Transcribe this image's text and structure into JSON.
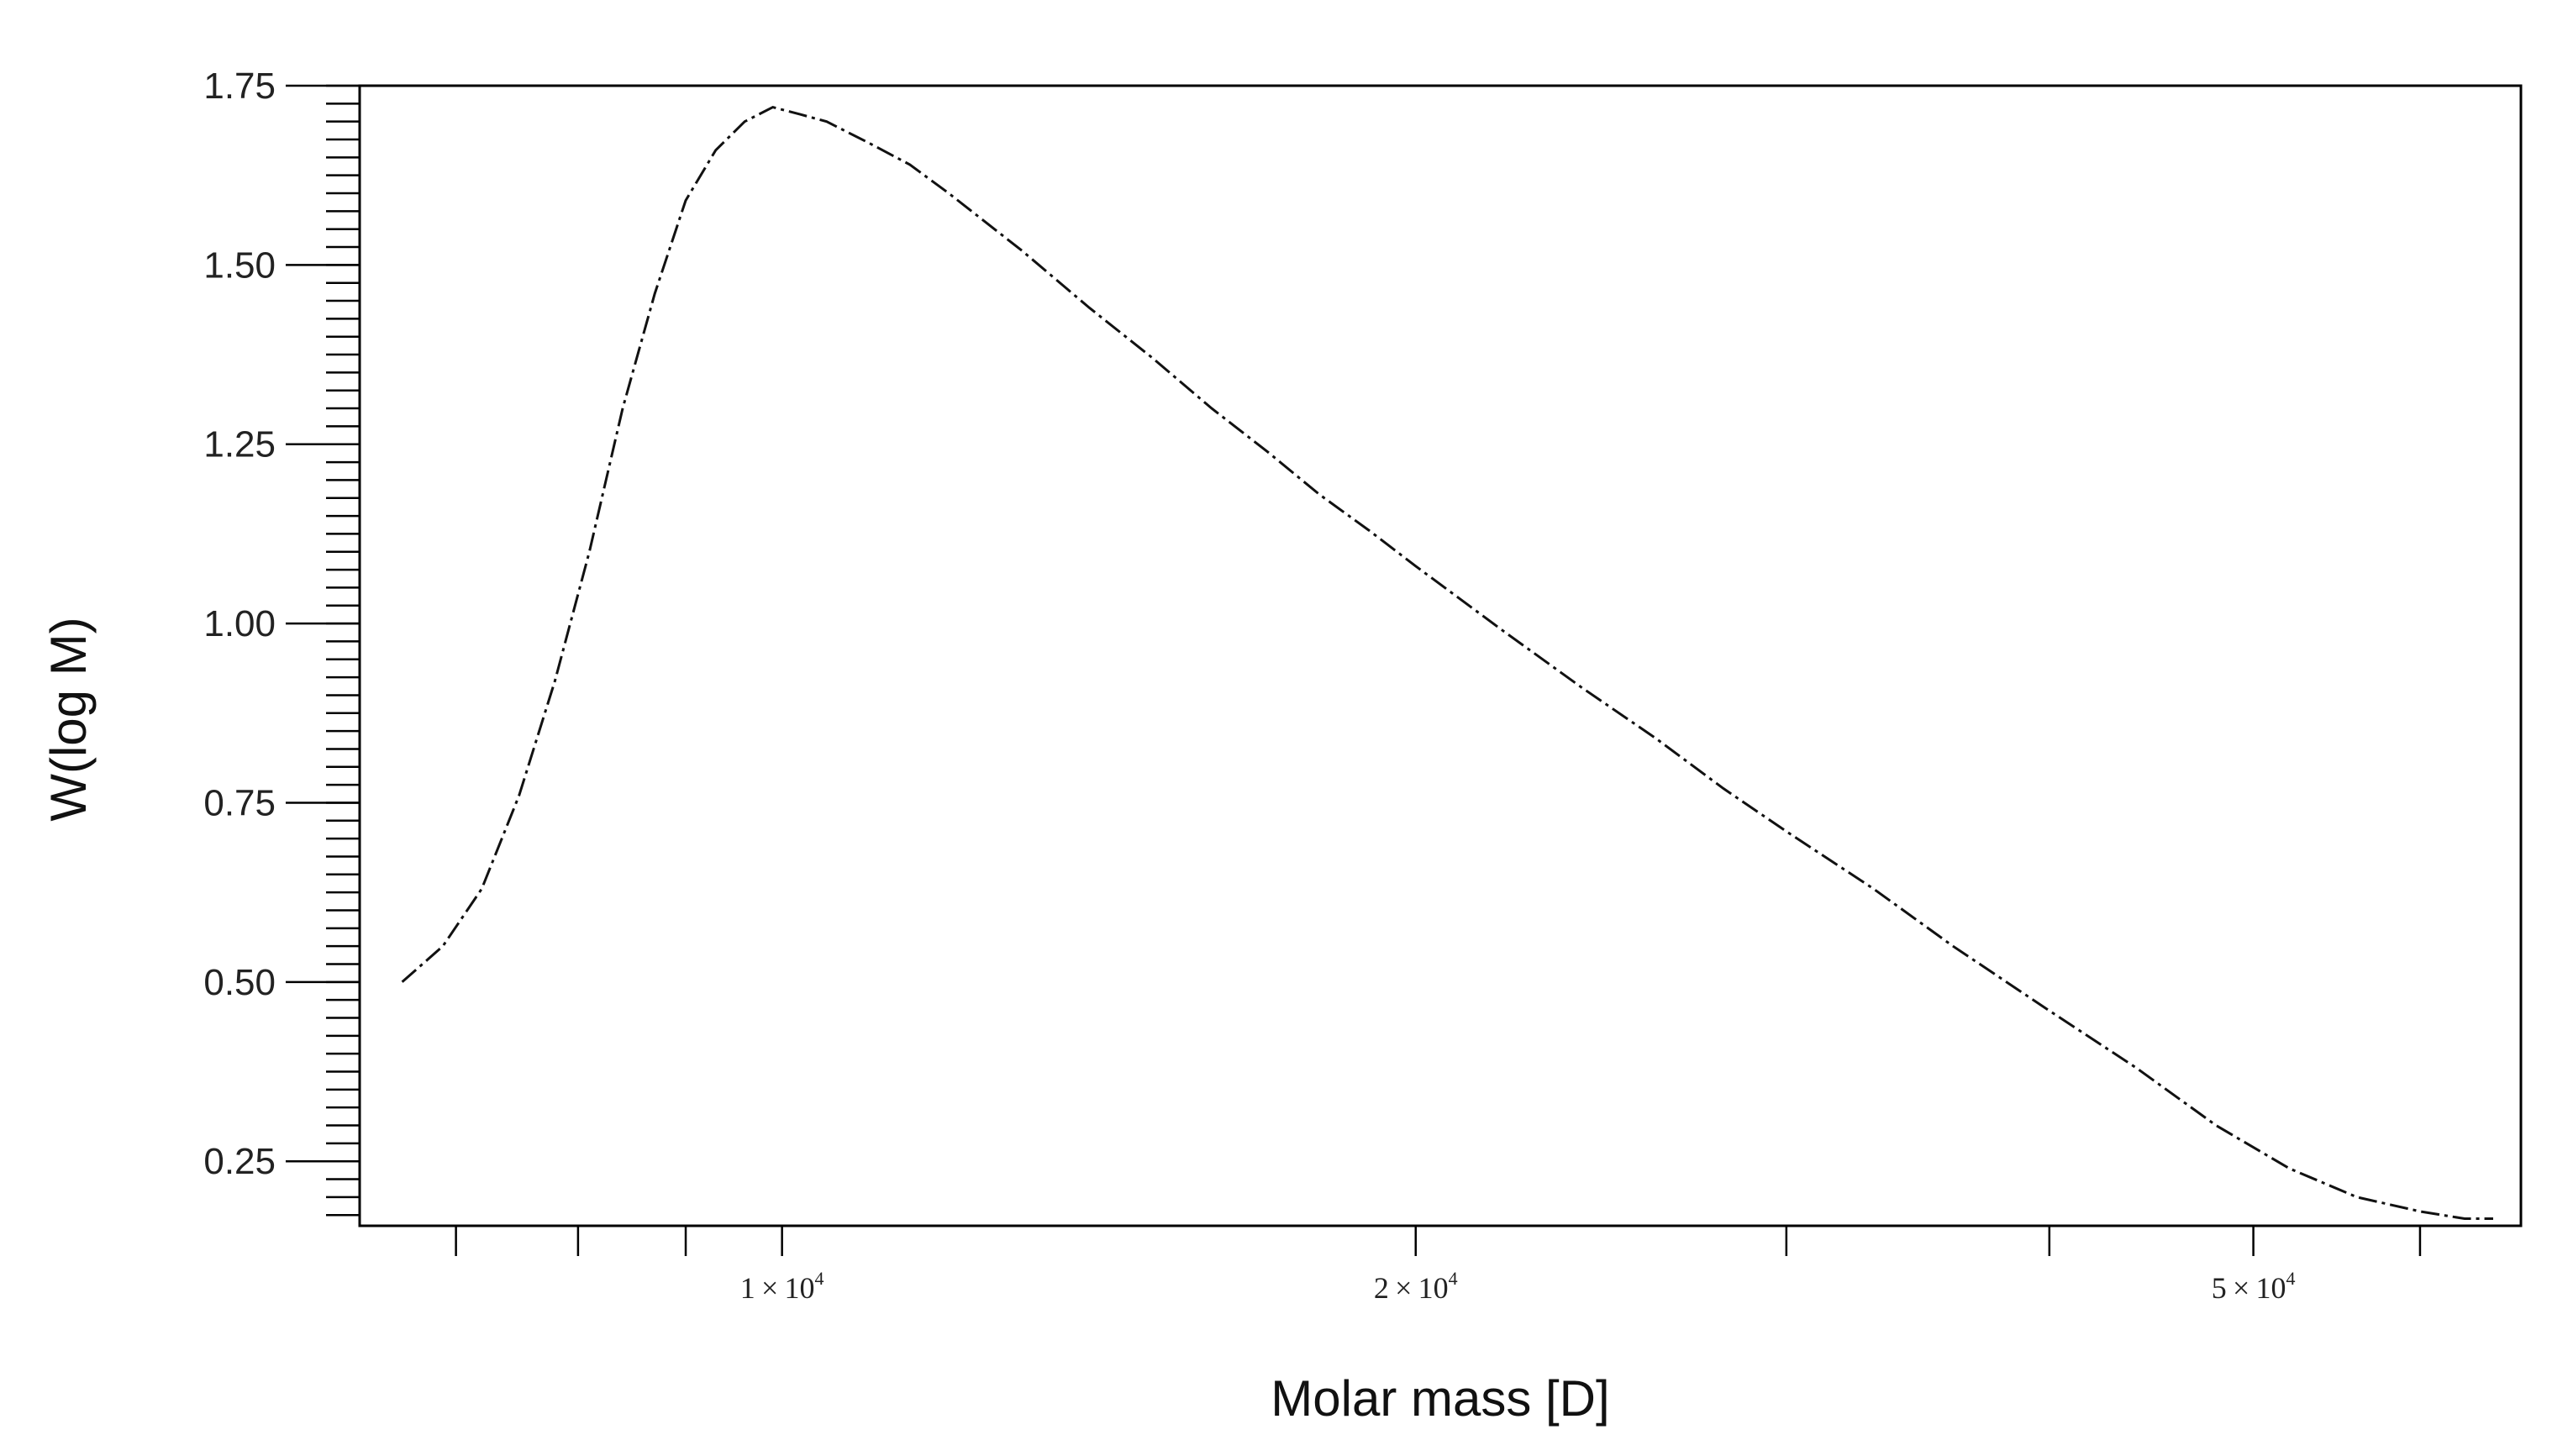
{
  "chart_data": {
    "type": "line",
    "title": "",
    "xlabel": "Molar mass [D]",
    "ylabel": "W(log M)",
    "x_scale": "log",
    "xlim": [
      6300,
      67000
    ],
    "ylim": [
      0.16,
      1.75
    ],
    "grid": false,
    "legend": "none",
    "y_ticks": [
      {
        "value": 0.25,
        "label": "0.25"
      },
      {
        "value": 0.5,
        "label": "0.50"
      },
      {
        "value": 0.75,
        "label": "0.75"
      },
      {
        "value": 1.0,
        "label": "1.00"
      },
      {
        "value": 1.25,
        "label": "1.25"
      },
      {
        "value": 1.5,
        "label": "1.50"
      },
      {
        "value": 1.75,
        "label": "1.75"
      }
    ],
    "x_ticks": [
      {
        "value": 10000,
        "mantissa": "1",
        "times": "×",
        "base": "10",
        "exp": "4"
      },
      {
        "value": 20000,
        "mantissa": "2",
        "times": "×",
        "base": "10",
        "exp": "4"
      },
      {
        "value": 50000,
        "mantissa": "5",
        "times": "×",
        "base": "10",
        "exp": "4"
      }
    ],
    "x_minor_ticks": [
      7000,
      8000,
      9000,
      30000,
      40000,
      60000
    ],
    "series": [
      {
        "x": [
          6600,
          6900,
          7200,
          7500,
          7800,
          8100,
          8400,
          8700,
          9000,
          9300,
          9600,
          9900,
          10200,
          10500,
          11000,
          11500,
          12000,
          13000,
          14000,
          15000,
          16000,
          17000,
          18000,
          19000,
          20000,
          22000,
          24000,
          26000,
          28000,
          30000,
          33000,
          36000,
          40000,
          44000,
          48000,
          52000,
          56000,
          60000,
          63000,
          65000
        ],
        "y": [
          0.5,
          0.55,
          0.63,
          0.76,
          0.92,
          1.1,
          1.3,
          1.46,
          1.59,
          1.66,
          1.7,
          1.72,
          1.71,
          1.7,
          1.67,
          1.64,
          1.6,
          1.52,
          1.44,
          1.37,
          1.3,
          1.24,
          1.18,
          1.13,
          1.08,
          0.99,
          0.91,
          0.84,
          0.77,
          0.71,
          0.63,
          0.55,
          0.46,
          0.38,
          0.3,
          0.24,
          0.2,
          0.18,
          0.17,
          0.17
        ]
      }
    ]
  }
}
